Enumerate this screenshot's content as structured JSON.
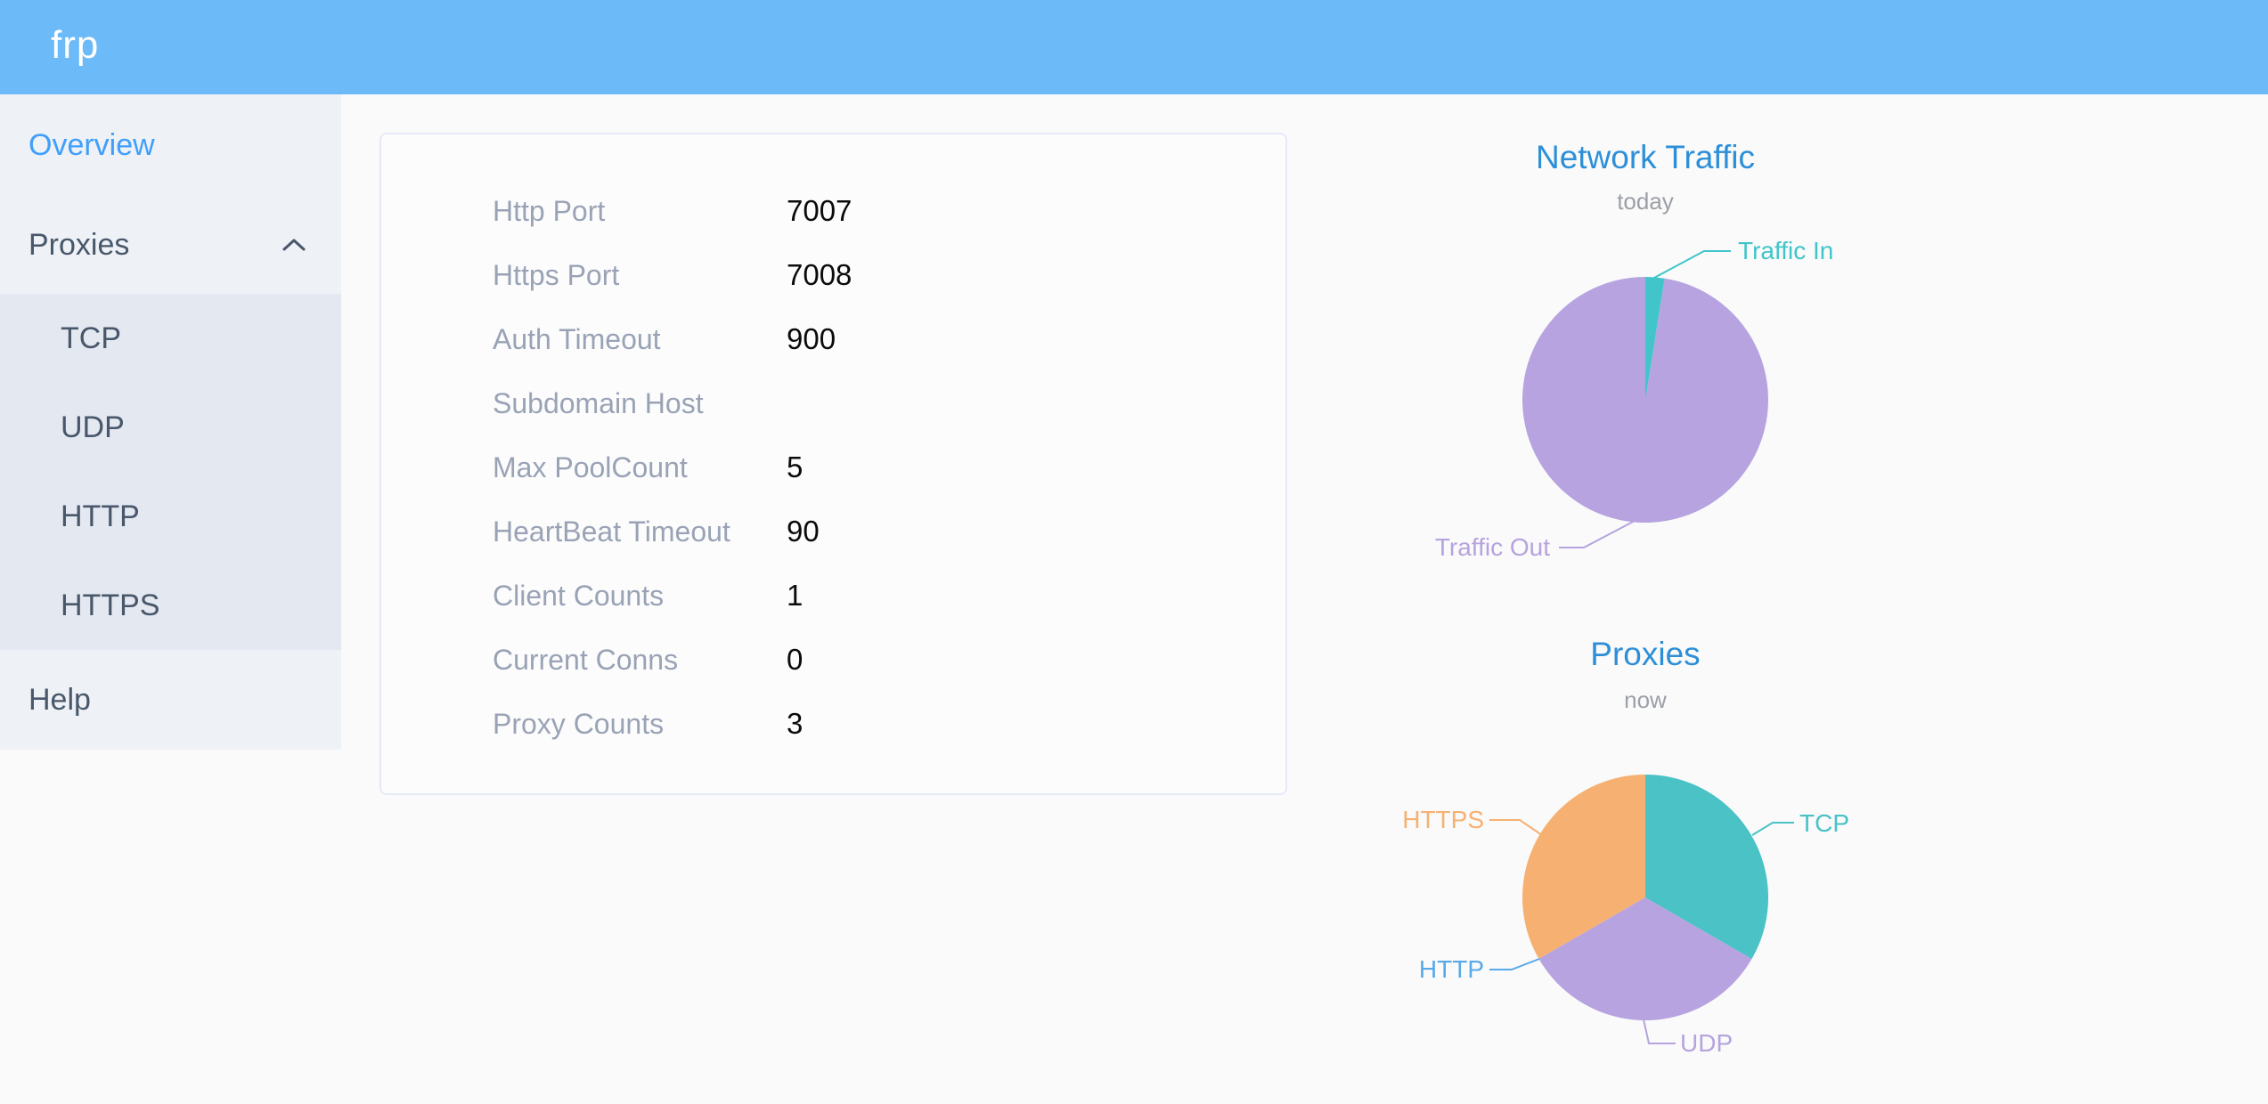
{
  "header": {
    "logo": "frp"
  },
  "sidebar": {
    "overview": "Overview",
    "proxies": "Proxies",
    "submenu": [
      "TCP",
      "UDP",
      "HTTP",
      "HTTPS"
    ],
    "help": "Help"
  },
  "server_info": {
    "rows": [
      {
        "label": "Http Port",
        "value": "7007"
      },
      {
        "label": "Https Port",
        "value": "7008"
      },
      {
        "label": "Auth Timeout",
        "value": "900"
      },
      {
        "label": "Subdomain Host",
        "value": ""
      },
      {
        "label": "Max PoolCount",
        "value": "5"
      },
      {
        "label": "HeartBeat Timeout",
        "value": "90"
      },
      {
        "label": "Client Counts",
        "value": "1"
      },
      {
        "label": "Current Conns",
        "value": "0"
      },
      {
        "label": "Proxy Counts",
        "value": "3"
      }
    ]
  },
  "chart_data": [
    {
      "type": "pie",
      "title": "Network Traffic",
      "subtitle": "today",
      "value_unit": "percent-of-circle (estimated from slice angles, no numeric labels shown)",
      "series": [
        {
          "name": "Traffic In",
          "value": 2.5,
          "color": "#41c5ca"
        },
        {
          "name": "Traffic Out",
          "value": 97.5,
          "color": "#b6a3df"
        }
      ],
      "legend_position": "callout-labels"
    },
    {
      "type": "pie",
      "title": "Proxies",
      "subtitle": "now",
      "value_unit": "proxy count (total 3)",
      "series": [
        {
          "name": "TCP",
          "value": 1,
          "color": "#4ac2c6"
        },
        {
          "name": "UDP",
          "value": 1,
          "color": "#b6a3df"
        },
        {
          "name": "HTTP",
          "value": 0,
          "color": "#57a9e8"
        },
        {
          "name": "HTTPS",
          "value": 1,
          "color": "#f6b172"
        }
      ],
      "legend_position": "callout-labels"
    }
  ],
  "colors": {
    "header_bg": "#6cbaf7",
    "sidebar_bg": "#eef1f6",
    "submenu_bg": "#e4e8f1",
    "active_link": "#3f9ffb",
    "menu_text": "#48576a",
    "chart_title": "#2d8fd8",
    "card_label": "#9aa3b5"
  }
}
